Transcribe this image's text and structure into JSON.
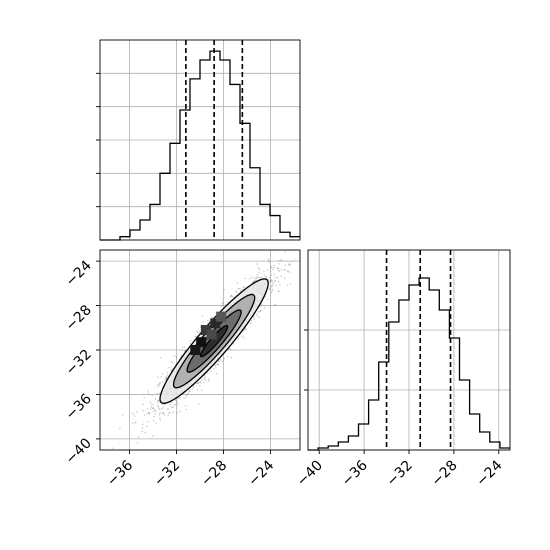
{
  "chart_data": {
    "type": "corner",
    "colors": {
      "grid": "#b0b0b0",
      "line": "#000000",
      "scatter": "#888888"
    },
    "grid": true,
    "panels": [
      {
        "id": "hist-x",
        "type": "histogram",
        "xlim": [
          -38.5,
          -21.5
        ],
        "ylim": [
          0,
          180
        ],
        "yticks": [
          30,
          60,
          90,
          120,
          150
        ],
        "show_tick_labels": false,
        "bin_edges": [
          -38.5,
          -37.65,
          -36.8,
          -35.95,
          -35.1,
          -34.25,
          -33.4,
          -32.55,
          -31.7,
          -30.85,
          -30.0,
          -29.15,
          -28.3,
          -27.45,
          -26.6,
          -25.75,
          -24.9,
          -24.05,
          -23.2,
          -22.35,
          -21.5
        ],
        "counts": [
          0,
          0,
          3,
          9,
          18,
          32,
          60,
          87,
          117,
          145,
          162,
          170,
          162,
          140,
          105,
          65,
          32,
          22,
          7,
          3
        ],
        "quantiles": [
          -31.2,
          -28.8,
          -26.4
        ]
      },
      {
        "id": "hist-y",
        "type": "histogram",
        "xlim": [
          -41.0,
          -23.0
        ],
        "ylim": [
          0,
          200
        ],
        "yticks": [
          60,
          120
        ],
        "show_tick_labels": false,
        "bin_edges": [
          -41.0,
          -40.1,
          -39.2,
          -38.3,
          -37.4,
          -36.5,
          -35.6,
          -34.7,
          -33.8,
          -32.9,
          -32.0,
          -31.1,
          -30.2,
          -29.3,
          -28.4,
          -27.5,
          -26.6,
          -25.7,
          -24.8,
          -23.9,
          -23.0
        ],
        "counts": [
          0,
          2,
          4,
          8,
          14,
          26,
          50,
          88,
          128,
          150,
          165,
          172,
          160,
          140,
          112,
          70,
          36,
          18,
          8,
          2
        ],
        "quantiles": [
          -34.0,
          -31.0,
          -28.3
        ],
        "xticks": [
          -40,
          -36,
          -32,
          -28,
          -24
        ],
        "xtick_labels": [
          "−40",
          "−36",
          "−32",
          "−28",
          "−24"
        ]
      },
      {
        "id": "joint",
        "type": "scatter-contour",
        "xlim": [
          -38.5,
          -21.5
        ],
        "ylim": [
          -41.0,
          -23.0
        ],
        "xticks": [
          -36,
          -32,
          -28,
          -24
        ],
        "xtick_labels": [
          "−36",
          "−32",
          "−28",
          "−24"
        ],
        "yticks": [
          -24,
          -28,
          -32,
          -36,
          -40
        ],
        "ytick_labels": [
          "−24",
          "−28",
          "−32",
          "−36",
          "−40"
        ],
        "center": [
          -28.8,
          -31.2
        ],
        "std": [
          2.3,
          2.8
        ],
        "correlation": 0.93,
        "contour_sigma_levels": [
          0.5,
          1.0,
          1.5,
          2.0
        ],
        "contour_fills": [
          "#222222",
          "#606060",
          "#a8a8a8",
          "#e8e8e8"
        ],
        "peak_cells": [
          {
            "x": -29.5,
            "y": -30.2,
            "shade": "#3a3a3a"
          },
          {
            "x": -28.7,
            "y": -29.6,
            "shade": "#2a2a2a"
          },
          {
            "x": -29.9,
            "y": -31.3,
            "shade": "#101010"
          },
          {
            "x": -29.0,
            "y": -30.6,
            "shade": "#4a4a4a"
          },
          {
            "x": -30.4,
            "y": -32.0,
            "shade": "#181818"
          },
          {
            "x": -28.2,
            "y": -29.0,
            "shade": "#555555"
          }
        ]
      }
    ]
  }
}
